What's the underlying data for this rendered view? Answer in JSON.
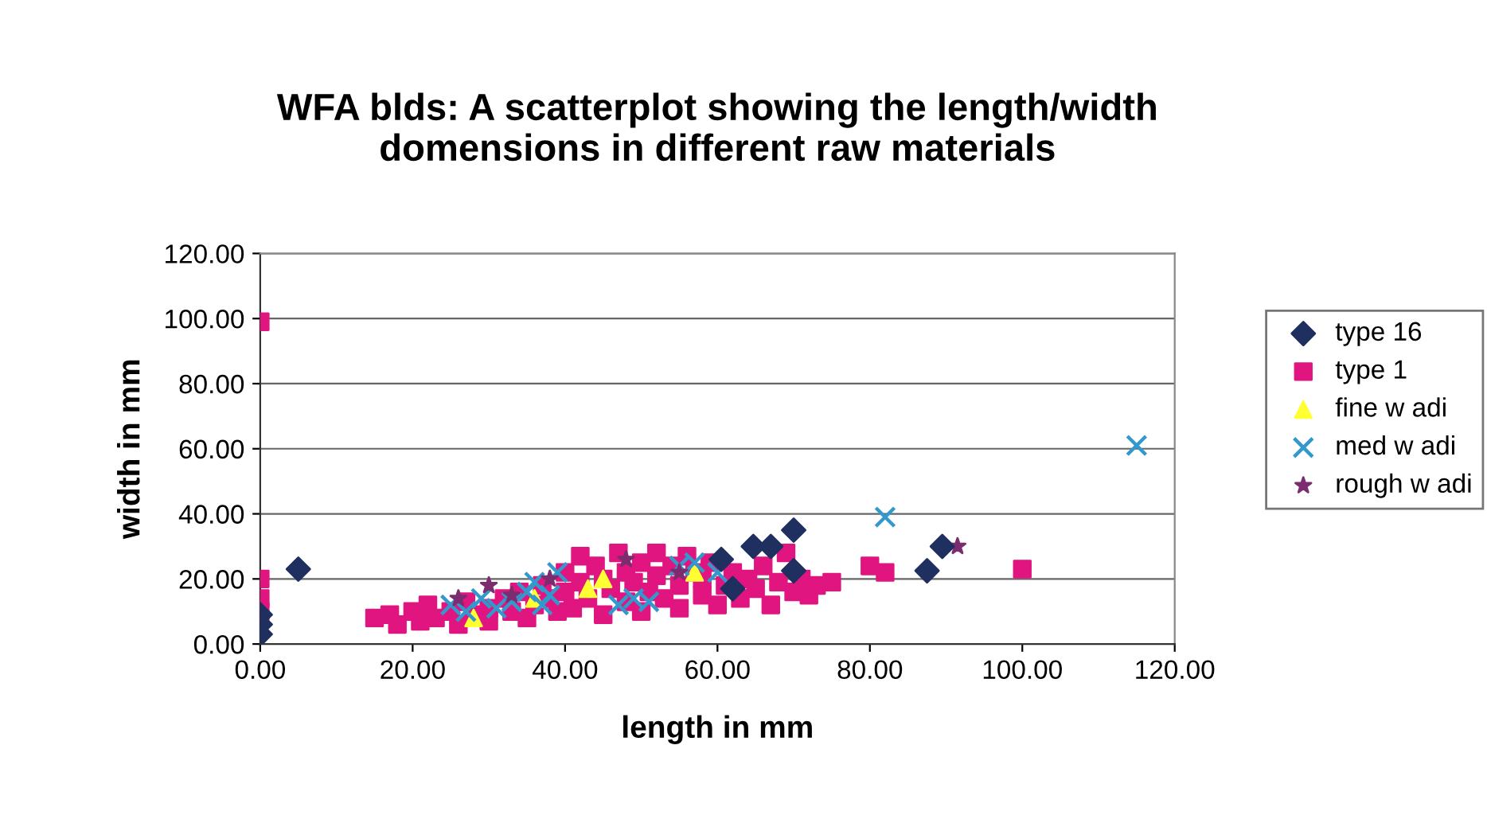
{
  "chart_data": {
    "type": "scatter",
    "title": "WFA blds: A scatterplot showing the length/width\ndomensions in different raw materials",
    "xlabel": "length in mm",
    "ylabel": "width in mm",
    "xlim": [
      0,
      120
    ],
    "ylim": [
      0,
      120
    ],
    "xticks": [
      {
        "value": 0,
        "label": "0.00"
      },
      {
        "value": 20,
        "label": "20.00"
      },
      {
        "value": 40,
        "label": "40.00"
      },
      {
        "value": 60,
        "label": "60.00"
      },
      {
        "value": 80,
        "label": "80.00"
      },
      {
        "value": 100,
        "label": "100.00"
      },
      {
        "value": 120,
        "label": "120.00"
      }
    ],
    "yticks": [
      {
        "value": 0,
        "label": "0.00"
      },
      {
        "value": 20,
        "label": "20.00"
      },
      {
        "value": 40,
        "label": "40.00"
      },
      {
        "value": 60,
        "label": "60.00"
      },
      {
        "value": 80,
        "label": "80.00"
      },
      {
        "value": 100,
        "label": "100.00"
      },
      {
        "value": 120,
        "label": "120.00"
      }
    ],
    "grid": "y",
    "legend": "right",
    "series": [
      {
        "name": "type 16",
        "color": "#1f2f5f",
        "marker": "diamond",
        "x": [
          0,
          0,
          0,
          5,
          60.5,
          62,
          64.7,
          67,
          70,
          70,
          87.5,
          89.5
        ],
        "values": [
          3,
          6,
          9,
          23,
          26,
          17,
          30,
          30,
          35,
          22.5,
          22.5,
          30
        ]
      },
      {
        "name": "type 1",
        "color": "#e0157f",
        "marker": "square",
        "x": [
          0,
          0,
          0,
          0,
          15,
          17,
          18,
          20,
          21,
          22,
          23,
          25,
          26,
          27,
          28,
          30,
          30,
          32,
          33,
          34,
          35,
          36,
          37,
          38,
          39,
          40,
          40,
          41,
          42,
          42,
          43,
          44,
          45,
          45,
          46,
          47,
          48,
          48,
          49,
          50,
          50,
          51,
          52,
          52,
          53,
          54,
          55,
          55,
          56,
          57,
          58,
          58,
          59,
          60,
          61,
          62,
          63,
          64,
          65,
          66,
          67,
          68,
          69,
          70,
          71,
          72,
          73,
          75,
          80,
          82,
          100
        ],
        "values": [
          99,
          20,
          14,
          10,
          8,
          9,
          6,
          10,
          7,
          12,
          8,
          10,
          6,
          13,
          9,
          11,
          7,
          14,
          10,
          16,
          8,
          12,
          18,
          14,
          10,
          22,
          16,
          11,
          27,
          19,
          14,
          24,
          9,
          20,
          17,
          28,
          13,
          22,
          19,
          25,
          10,
          16,
          28,
          21,
          14,
          24,
          18,
          11,
          27,
          22,
          15,
          20,
          25,
          12,
          18,
          22,
          14,
          20,
          17,
          24,
          12,
          19,
          28,
          16,
          20,
          15,
          18,
          19,
          24,
          22,
          23
        ]
      },
      {
        "name": "fine w adi",
        "color": "#ffff33",
        "marker": "triangle",
        "x": [
          28,
          36,
          43,
          45,
          57
        ],
        "values": [
          8,
          14,
          17,
          20,
          22
        ]
      },
      {
        "name": "med w adi",
        "color": "#3399cc",
        "marker": "cross",
        "x": [
          25,
          27,
          29,
          31,
          33,
          35,
          36,
          37,
          38,
          39,
          47,
          49,
          51,
          55,
          57,
          60,
          82,
          115
        ],
        "values": [
          12,
          10,
          14,
          11,
          13,
          16,
          19,
          12,
          15,
          22,
          12,
          14,
          13,
          24,
          25,
          22,
          39,
          61
        ]
      },
      {
        "name": "rough w adi",
        "color": "#7b2d6f",
        "marker": "star",
        "x": [
          26,
          30,
          33,
          38,
          48,
          55,
          91.5
        ],
        "values": [
          14,
          18,
          15,
          20,
          26,
          22,
          30
        ]
      }
    ]
  }
}
